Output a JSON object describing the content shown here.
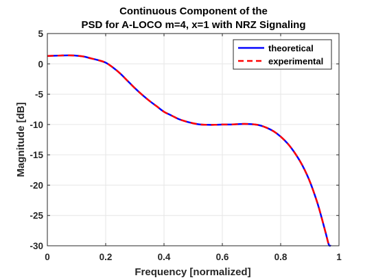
{
  "chart_data": {
    "type": "line",
    "title": [
      "Continuous Component of the",
      "PSD for A-LOCO m=4, x=1 with NRZ Signaling"
    ],
    "xlabel": "Frequency [normalized]",
    "ylabel": "Magnitude [dB]",
    "xlim": [
      0,
      1
    ],
    "ylim": [
      -30,
      5
    ],
    "xticks": [
      0,
      0.2,
      0.4,
      0.6,
      0.8,
      1
    ],
    "xtick_labels": [
      "0",
      "0.2",
      "0.4",
      "0.6",
      "0.8",
      "1"
    ],
    "yticks": [
      5,
      0,
      -5,
      -10,
      -15,
      -20,
      -25,
      -30
    ],
    "ytick_labels": [
      "5",
      "0",
      "-5",
      "-10",
      "-15",
      "-20",
      "-25",
      "-30"
    ],
    "grid": true,
    "legend_position": "top-right",
    "x": [
      0,
      0.025,
      0.05,
      0.075,
      0.1,
      0.125,
      0.15,
      0.175,
      0.2,
      0.225,
      0.25,
      0.275,
      0.3,
      0.325,
      0.35,
      0.375,
      0.4,
      0.425,
      0.45,
      0.475,
      0.5,
      0.525,
      0.55,
      0.575,
      0.6,
      0.625,
      0.65,
      0.675,
      0.7,
      0.725,
      0.75,
      0.775,
      0.8,
      0.825,
      0.85,
      0.875,
      0.9,
      0.925,
      0.94,
      0.955,
      0.965,
      0.972
    ],
    "series": [
      {
        "name": "theoretical",
        "color": "#0000ff",
        "style": "solid",
        "values": [
          1.3,
          1.35,
          1.38,
          1.4,
          1.35,
          1.2,
          0.9,
          0.6,
          0.2,
          -0.6,
          -1.6,
          -2.8,
          -4.0,
          -5.1,
          -6.1,
          -7.0,
          -7.9,
          -8.5,
          -9.1,
          -9.5,
          -9.8,
          -10.0,
          -10.05,
          -10.05,
          -10.0,
          -10.0,
          -9.95,
          -9.9,
          -9.95,
          -10.1,
          -10.5,
          -11.1,
          -12.0,
          -13.2,
          -14.8,
          -16.8,
          -19.4,
          -22.8,
          -25.3,
          -28.0,
          -29.8,
          -30.0
        ]
      },
      {
        "name": "experimental",
        "color": "#ff0000",
        "style": "dashed",
        "values": [
          1.3,
          1.35,
          1.38,
          1.4,
          1.35,
          1.2,
          0.9,
          0.6,
          0.2,
          -0.6,
          -1.6,
          -2.8,
          -4.0,
          -5.1,
          -6.1,
          -7.0,
          -7.9,
          -8.5,
          -9.1,
          -9.5,
          -9.8,
          -10.0,
          -10.05,
          -10.05,
          -10.0,
          -10.0,
          -9.95,
          -9.9,
          -9.95,
          -10.1,
          -10.5,
          -11.1,
          -12.0,
          -13.2,
          -14.8,
          -16.8,
          -19.4,
          -22.8,
          -25.3,
          -28.0,
          -29.8,
          -30.0
        ]
      }
    ]
  }
}
